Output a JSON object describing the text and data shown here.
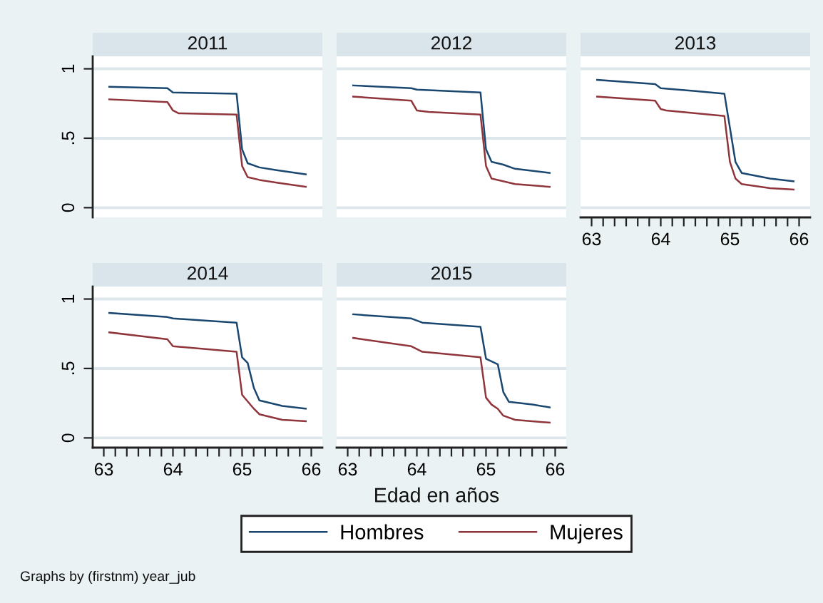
{
  "chart_data": [
    {
      "type": "line",
      "title": "2011",
      "legend": "bottom",
      "xlim": [
        62.84,
        66.16
      ],
      "ylim": [
        -0.07,
        1.09
      ],
      "yticks": [
        0,
        {
          "value": 0.5,
          "label": ".5"
        },
        1
      ],
      "grid": "y",
      "tick_labels": "y",
      "series": [
        {
          "name": "Hombres",
          "color": "#1a476f",
          "x": [
            63.08,
            63.92,
            64.0,
            64.92,
            65.0,
            65.08,
            65.25,
            65.5,
            65.92
          ],
          "values": [
            0.87,
            0.86,
            0.83,
            0.82,
            0.42,
            0.32,
            0.29,
            0.27,
            0.24
          ]
        },
        {
          "name": "Mujeres",
          "color": "#90353b",
          "x": [
            63.08,
            63.92,
            64.0,
            64.08,
            64.92,
            65.0,
            65.08,
            65.25,
            65.5,
            65.92
          ],
          "values": [
            0.78,
            0.76,
            0.7,
            0.68,
            0.67,
            0.3,
            0.22,
            0.2,
            0.18,
            0.15
          ]
        }
      ]
    },
    {
      "type": "line",
      "title": "2012",
      "xlim": [
        62.84,
        66.16
      ],
      "ylim": [
        -0.07,
        1.09
      ],
      "yticks": [
        {
          "value": 0,
          "label": null
        },
        {
          "value": 0.5,
          "label": null
        },
        {
          "value": 1,
          "label": null
        }
      ],
      "grid": "y",
      "tick_labels": false,
      "series": [
        {
          "color": "#1a476f",
          "x": [
            63.08,
            63.92,
            64.0,
            64.92,
            65.0,
            65.08,
            65.25,
            65.42,
            65.92
          ],
          "values": [
            0.88,
            0.86,
            0.85,
            0.83,
            0.42,
            0.33,
            0.31,
            0.28,
            0.25
          ]
        },
        {
          "color": "#90353b",
          "x": [
            63.08,
            63.92,
            64.0,
            64.17,
            64.92,
            65.0,
            65.08,
            65.42,
            65.92
          ],
          "values": [
            0.8,
            0.77,
            0.7,
            0.69,
            0.67,
            0.3,
            0.21,
            0.17,
            0.15
          ]
        }
      ]
    },
    {
      "type": "line",
      "title": "2013",
      "xlim": [
        62.84,
        66.16
      ],
      "ylim": [
        -0.07,
        1.09
      ],
      "xticks": [
        63,
        {
          "value": 63.167,
          "label": null
        },
        {
          "value": 63.333,
          "label": null
        },
        {
          "value": 63.5,
          "label": null
        },
        {
          "value": 63.667,
          "label": null
        },
        {
          "value": 63.833,
          "label": null
        },
        64,
        {
          "value": 64.167,
          "label": null
        },
        {
          "value": 64.333,
          "label": null
        },
        {
          "value": 64.5,
          "label": null
        },
        {
          "value": 64.667,
          "label": null
        },
        {
          "value": 64.833,
          "label": null
        },
        65,
        {
          "value": 65.167,
          "label": null
        },
        {
          "value": 65.333,
          "label": null
        },
        {
          "value": 65.5,
          "label": null
        },
        {
          "value": 65.667,
          "label": null
        },
        {
          "value": 65.833,
          "label": null
        },
        66
      ],
      "yticks": [
        {
          "value": 0,
          "label": null
        },
        {
          "value": 0.5,
          "label": null
        },
        {
          "value": 1,
          "label": null
        }
      ],
      "grid": "y",
      "tick_labels": "x",
      "series": [
        {
          "color": "#1a476f",
          "x": [
            63.08,
            63.92,
            64.0,
            64.5,
            64.92,
            65.08,
            65.17,
            65.58,
            65.92
          ],
          "values": [
            0.92,
            0.89,
            0.86,
            0.84,
            0.82,
            0.33,
            0.25,
            0.21,
            0.19
          ]
        },
        {
          "color": "#90353b",
          "x": [
            63.08,
            63.92,
            64.0,
            64.08,
            64.92,
            65.0,
            65.08,
            65.17,
            65.58,
            65.92
          ],
          "values": [
            0.8,
            0.77,
            0.71,
            0.7,
            0.66,
            0.33,
            0.21,
            0.17,
            0.14,
            0.13
          ]
        }
      ]
    },
    {
      "type": "line",
      "title": "2014",
      "xlim": [
        62.84,
        66.16
      ],
      "ylim": [
        -0.07,
        1.09
      ],
      "xticks": [
        63,
        {
          "value": 63.167,
          "label": null
        },
        {
          "value": 63.333,
          "label": null
        },
        {
          "value": 63.5,
          "label": null
        },
        {
          "value": 63.667,
          "label": null
        },
        {
          "value": 63.833,
          "label": null
        },
        64,
        {
          "value": 64.167,
          "label": null
        },
        {
          "value": 64.333,
          "label": null
        },
        {
          "value": 64.5,
          "label": null
        },
        {
          "value": 64.667,
          "label": null
        },
        {
          "value": 64.833,
          "label": null
        },
        65,
        {
          "value": 65.167,
          "label": null
        },
        {
          "value": 65.333,
          "label": null
        },
        {
          "value": 65.5,
          "label": null
        },
        {
          "value": 65.667,
          "label": null
        },
        {
          "value": 65.833,
          "label": null
        },
        66
      ],
      "yticks": [
        0,
        {
          "value": 0.5,
          "label": ".5"
        },
        1
      ],
      "grid": "y",
      "series": [
        {
          "color": "#1a476f",
          "x": [
            63.08,
            63.92,
            64.0,
            64.92,
            65.0,
            65.08,
            65.17,
            65.25,
            65.58,
            65.92
          ],
          "values": [
            0.9,
            0.87,
            0.86,
            0.83,
            0.58,
            0.54,
            0.36,
            0.27,
            0.23,
            0.21
          ]
        },
        {
          "color": "#90353b",
          "x": [
            63.08,
            63.92,
            64.0,
            64.92,
            65.0,
            65.17,
            65.25,
            65.58,
            65.92
          ],
          "values": [
            0.76,
            0.71,
            0.66,
            0.62,
            0.31,
            0.21,
            0.17,
            0.13,
            0.12
          ]
        }
      ]
    },
    {
      "type": "line",
      "title": "2015",
      "xlabel": "Edad en años",
      "annotations": [
        "Graphs by (firstnm) year_jub"
      ],
      "xlim": [
        62.84,
        66.16
      ],
      "ylim": [
        -0.07,
        1.09
      ],
      "xticks": [
        63,
        {
          "value": 63.167,
          "label": null
        },
        {
          "value": 63.333,
          "label": null
        },
        {
          "value": 63.5,
          "label": null
        },
        {
          "value": 63.667,
          "label": null
        },
        {
          "value": 63.833,
          "label": null
        },
        64,
        {
          "value": 64.167,
          "label": null
        },
        {
          "value": 64.333,
          "label": null
        },
        {
          "value": 64.5,
          "label": null
        },
        {
          "value": 64.667,
          "label": null
        },
        {
          "value": 64.833,
          "label": null
        },
        65,
        {
          "value": 65.167,
          "label": null
        },
        {
          "value": 65.333,
          "label": null
        },
        {
          "value": 65.5,
          "label": null
        },
        {
          "value": 65.667,
          "label": null
        },
        {
          "value": 65.833,
          "label": null
        },
        66
      ],
      "yticks": [
        {
          "value": 0,
          "label": null
        },
        {
          "value": 0.5,
          "label": null
        },
        {
          "value": 1,
          "label": null
        }
      ],
      "grid": "y",
      "tick_labels": "x",
      "series": [
        {
          "color": "#1a476f",
          "x": [
            63.08,
            63.92,
            64.08,
            64.92,
            65.0,
            65.17,
            65.25,
            65.33,
            65.67,
            65.92
          ],
          "values": [
            0.89,
            0.86,
            0.83,
            0.8,
            0.57,
            0.53,
            0.33,
            0.26,
            0.24,
            0.22
          ]
        },
        {
          "color": "#90353b",
          "x": [
            63.08,
            63.92,
            64.08,
            64.92,
            65.0,
            65.08,
            65.17,
            65.25,
            65.42,
            65.92
          ],
          "values": [
            0.72,
            0.66,
            0.62,
            0.58,
            0.29,
            0.24,
            0.21,
            0.16,
            0.13,
            0.11
          ]
        }
      ]
    }
  ]
}
